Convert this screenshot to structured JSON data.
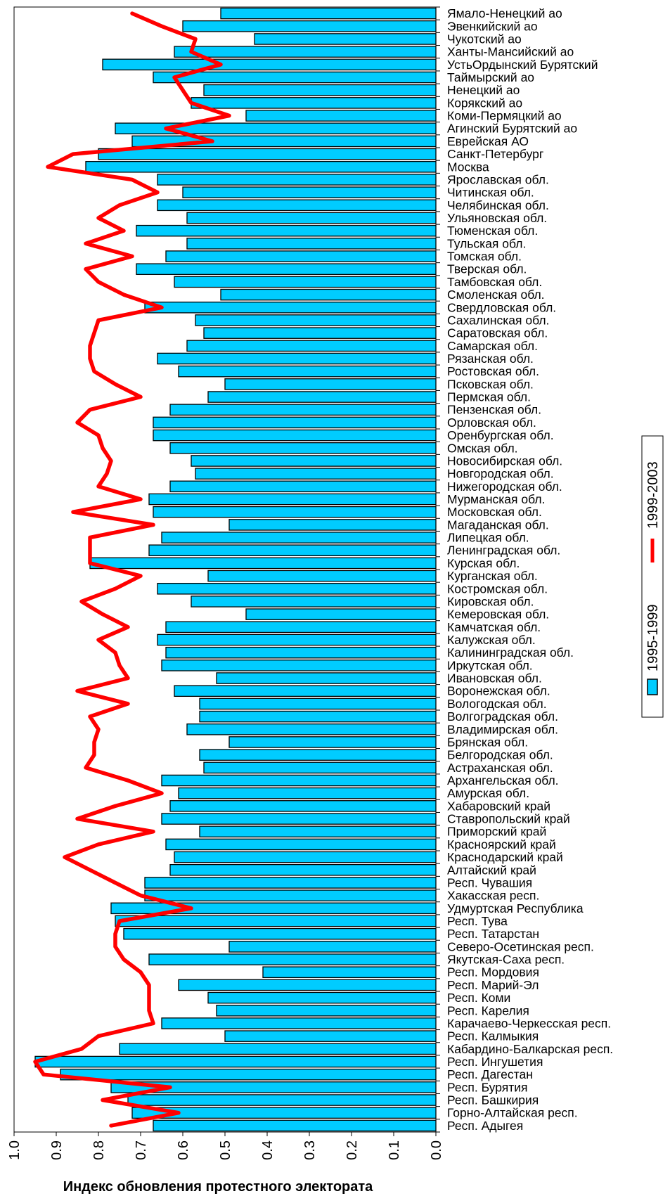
{
  "chart_data": {
    "type": "bar",
    "orientation": "horizontal",
    "xlabel": "Индекс обновления протестного электората",
    "xlim": [
      1.0,
      0.0
    ],
    "xticks": [
      "1.0",
      "0.9",
      "0.8",
      "0.7",
      "0.6",
      "0.5",
      "0.4",
      "0.3",
      "0.2",
      "0.1",
      "0.0"
    ],
    "bar_color": "#00ccff",
    "line_color": "#ff0000",
    "legend_position": "right",
    "categories": [
      "Ямало-Ненецкий ао",
      "Эвенкийский ао",
      "Чукотский ао",
      "Ханты-Мансийский ао",
      "УстьОрдынский Бурятский",
      "Таймырский ао",
      "Ненецкий ао",
      "Корякский ао",
      "Коми-Пермяцкий ао",
      "Агинский Бурятский ао",
      "Еврейская АО",
      "Санкт-Петербург",
      "Москва",
      "Ярославская обл.",
      "Читинская обл.",
      "Челябинская обл.",
      "Ульяновская обл.",
      "Тюменская обл.",
      "Тульская обл.",
      "Томская обл.",
      "Тверская обл.",
      "Тамбовская обл.",
      "Смоленская обл.",
      "Свердловская обл.",
      "Сахалинская обл.",
      "Саратовская обл.",
      "Самарская обл.",
      "Рязанская обл.",
      "Ростовская обл.",
      "Псковская обл.",
      "Пермская обл.",
      "Пензенская обл.",
      "Орловская обл.",
      "Оренбургская обл.",
      "Омская обл.",
      "Новосибирская обл.",
      "Новгородская обл.",
      "Нижегородская обл.",
      "Мурманская обл.",
      "Московская обл.",
      "Магаданская обл.",
      "Липецкая обл.",
      "Ленинградская обл.",
      "Курская обл.",
      "Курганская обл.",
      "Костромская обл.",
      "Кировская обл.",
      "Кемеровская обл.",
      "Камчатская обл.",
      "Калужская обл.",
      "Калининградская обл.",
      "Иркутская обл.",
      "Ивановская обл.",
      "Воронежская обл.",
      "Вологодская обл.",
      "Волгоградская обл.",
      "Владимирская обл.",
      "Брянская обл.",
      "Белгородская обл.",
      "Астраханская обл.",
      "Архангельская обл.",
      "Амурская обл.",
      "Хабаровский край",
      "Ставропольский край",
      "Приморский край",
      "Красноярский край",
      "Краснодарский край",
      "Алтайский край",
      "Респ. Чувашия",
      "Хакасская респ.",
      "Удмуртская Республика",
      "Респ. Тува",
      "Респ. Татарстан",
      "Северо-Осетинская респ.",
      "Якутская-Саха респ.",
      "Респ. Мордовия",
      "Респ. Марий-Эл",
      "Респ. Коми",
      "Респ. Карелия",
      "Карачаево-Черкесская респ.",
      "Респ. Калмыкия",
      "Кабардино-Балкарская респ.",
      "Респ. Ингушетия",
      "Респ. Дагестан",
      "Респ. Бурятия",
      "Респ. Башкирия",
      "Горно-Алтайская респ.",
      "Респ. Адыгея"
    ],
    "series": [
      {
        "name": "1995-1999",
        "mark": "bar",
        "values": [
          0.51,
          0.6,
          0.43,
          0.62,
          0.79,
          0.67,
          0.55,
          0.58,
          0.45,
          0.76,
          0.72,
          0.8,
          0.83,
          0.66,
          0.6,
          0.66,
          0.59,
          0.71,
          0.59,
          0.64,
          0.71,
          0.62,
          0.51,
          0.69,
          0.57,
          0.55,
          0.59,
          0.66,
          0.61,
          0.5,
          0.54,
          0.63,
          0.67,
          0.67,
          0.63,
          0.58,
          0.57,
          0.63,
          0.68,
          0.67,
          0.49,
          0.65,
          0.68,
          0.82,
          0.54,
          0.66,
          0.58,
          0.45,
          0.64,
          0.66,
          0.64,
          0.65,
          0.52,
          0.62,
          0.56,
          0.56,
          0.59,
          0.49,
          0.56,
          0.55,
          0.65,
          0.61,
          0.63,
          0.65,
          0.56,
          0.64,
          0.62,
          0.63,
          0.69,
          0.69,
          0.77,
          0.76,
          0.74,
          0.49,
          0.68,
          0.41,
          0.61,
          0.54,
          0.52,
          0.65,
          0.5,
          0.75,
          0.95,
          0.89,
          0.77,
          0.73,
          0.72,
          0.67
        ]
      },
      {
        "name": "1999-2003",
        "mark": "line",
        "values": [
          0.72,
          0.65,
          0.57,
          0.58,
          0.51,
          0.62,
          0.6,
          0.58,
          0.49,
          0.64,
          0.53,
          0.86,
          0.92,
          0.72,
          0.66,
          0.75,
          0.8,
          0.74,
          0.83,
          0.72,
          0.83,
          0.8,
          0.74,
          0.65,
          0.8,
          0.81,
          0.82,
          0.82,
          0.81,
          0.76,
          0.7,
          0.82,
          0.85,
          0.8,
          0.79,
          0.77,
          0.78,
          0.8,
          0.7,
          0.86,
          0.67,
          0.82,
          0.82,
          0.82,
          0.7,
          0.76,
          0.84,
          0.79,
          0.73,
          0.8,
          0.76,
          0.75,
          0.73,
          0.85,
          0.73,
          0.82,
          0.8,
          0.81,
          0.81,
          0.83,
          0.73,
          0.65,
          0.76,
          0.85,
          0.67,
          0.8,
          0.88,
          0.82,
          0.76,
          0.7,
          0.58,
          0.75,
          0.76,
          0.76,
          0.74,
          0.7,
          0.68,
          0.68,
          0.68,
          0.67,
          0.8,
          0.84,
          0.95,
          0.93,
          0.63,
          0.79,
          0.61,
          0.77
        ]
      }
    ]
  }
}
